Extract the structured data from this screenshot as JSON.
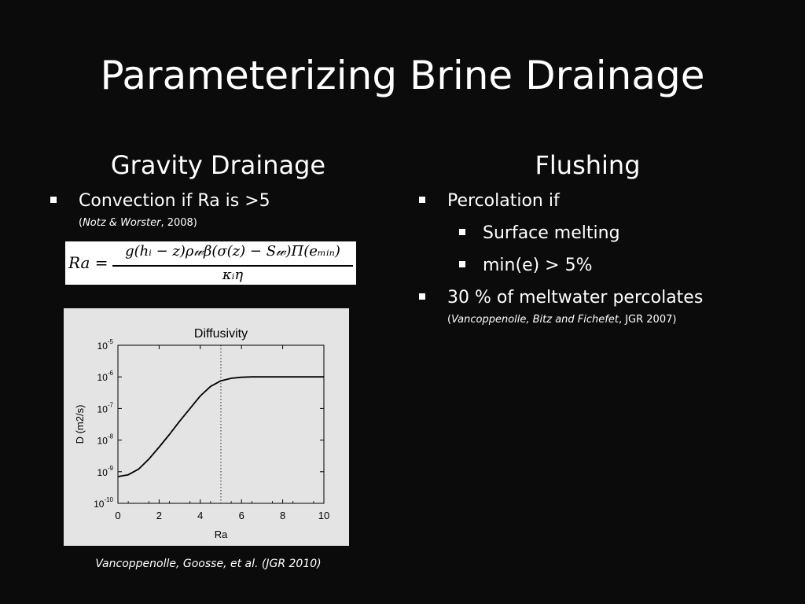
{
  "slide": {
    "title": "Parameterizing Brine Drainage",
    "left": {
      "heading": "Gravity Drainage",
      "bullet1": "Convection if Ra is >5",
      "cite_open": "(",
      "cite_authors": "Notz & Worster",
      "cite_rest": ", 2008)",
      "formula": {
        "lhs": "Ra =",
        "numerator": "g(hᵢ − z)ρ𝓌β(σ(z) − S𝓌)Π(eₘᵢₙ)",
        "denominator": "κᵢη"
      },
      "source": "Vancoppenolle, Goosse, et al. (JGR 2010)"
    },
    "right": {
      "heading": "Flushing",
      "bullet1": "Percolation if",
      "sub1": "Surface melting",
      "sub2": "min(e) > 5%",
      "bullet2": "30 % of meltwater percolates",
      "cite_open": "(",
      "cite_authors": "Vancoppenolle, Bitz and Fichefet",
      "cite_rest": ", JGR 2007)"
    }
  },
  "chart_data": {
    "type": "line",
    "title": "Diffusivity",
    "xlabel": "Ra",
    "ylabel": "D (m2/s)",
    "xlim": [
      0,
      10
    ],
    "ylim": [
      1e-10,
      1e-05
    ],
    "yscale": "log",
    "x_ticks": [
      "0",
      "2",
      "4",
      "6",
      "8",
      "10"
    ],
    "y_ticks": [
      {
        "base": "10",
        "exp": "-10",
        "value": 1e-10
      },
      {
        "base": "10",
        "exp": "-9",
        "value": 1e-09
      },
      {
        "base": "10",
        "exp": "-8",
        "value": 1e-08
      },
      {
        "base": "10",
        "exp": "-7",
        "value": 1e-07
      },
      {
        "base": "10",
        "exp": "-6",
        "value": 1e-06
      },
      {
        "base": "10",
        "exp": "-5",
        "value": 1e-05
      }
    ],
    "vline_x": 5,
    "series": [
      {
        "x": [
          0,
          0.5,
          1,
          1.5,
          2,
          2.5,
          3,
          3.5,
          4,
          4.5,
          5,
          5.5,
          6,
          6.5,
          7,
          8,
          9,
          10
        ],
        "y": [
          7e-10,
          8e-10,
          1.2e-09,
          2.5e-09,
          6e-09,
          1.5e-08,
          4e-08,
          1e-07,
          2.5e-07,
          5e-07,
          7.5e-07,
          9e-07,
          9.7e-07,
          1e-06,
          1e-06,
          1e-06,
          1e-06,
          1e-06
        ]
      }
    ],
    "colors": {
      "line": "#000000",
      "background": "#e4e4e4"
    }
  }
}
